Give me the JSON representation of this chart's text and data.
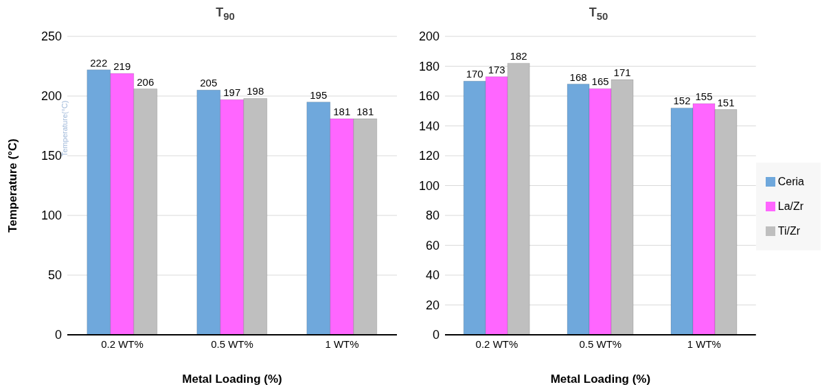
{
  "chart_data": [
    {
      "type": "bar",
      "title": "T$_{90}$",
      "xlabel": "Metal Loading (%)",
      "ylabel": "Temperature (°C)",
      "categories": [
        "0.2 WT%",
        "0.5 WT%",
        "1 WT%"
      ],
      "series": [
        {
          "color": "#6fa8dc",
          "values": [
            222,
            205,
            195
          ]
        },
        {
          "color": "#ff66ff",
          "values": [
            219,
            197,
            181
          ]
        },
        {
          "color": "#bfbfbf",
          "values": [
            206,
            198,
            181
          ]
        }
      ],
      "ylim": [
        0,
        250
      ],
      "yticks": [
        0,
        50,
        100,
        150,
        200,
        250
      ],
      "grid": "y",
      "data_labels": true,
      "legend": false,
      "annotations": [
        "Temperature(°C)"
      ]
    },
    {
      "type": "bar",
      "title": "T$_{50}$",
      "xlabel": "Metal Loading (%)",
      "categories": [
        "0.2 WT%",
        "0.5 WT%",
        "1 WT%"
      ],
      "series": [
        {
          "name": "Ceria",
          "color": "#6fa8dc",
          "values": [
            170,
            168,
            152
          ]
        },
        {
          "name": "La/Zr",
          "color": "#ff66ff",
          "values": [
            173,
            165,
            155
          ]
        },
        {
          "name": "Ti/Zr",
          "color": "#bfbfbf",
          "values": [
            182,
            171,
            151
          ]
        }
      ],
      "ylim": [
        0,
        200
      ],
      "yticks": [
        0,
        20,
        40,
        60,
        80,
        100,
        120,
        140,
        160,
        180,
        200
      ],
      "grid": "y",
      "data_labels": true,
      "legend": "right"
    }
  ]
}
